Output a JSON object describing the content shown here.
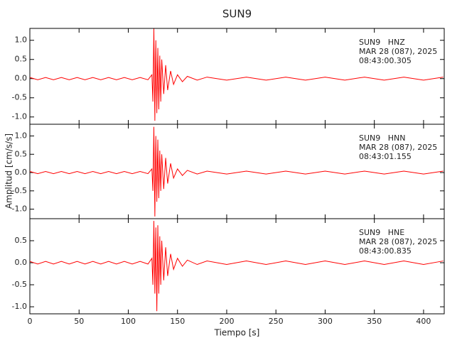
{
  "chart_data": [
    {
      "type": "line",
      "title": "SUN9",
      "labels": [
        "SUN9   HNZ",
        "MAR 28 (087), 2025",
        "08:43:00.305"
      ],
      "x": [
        0,
        8,
        16,
        24,
        32,
        40,
        48,
        56,
        64,
        72,
        80,
        88,
        96,
        104,
        112,
        120,
        124,
        125,
        126,
        127,
        128,
        129,
        130,
        131,
        132,
        133,
        134,
        136,
        138,
        140,
        143,
        146,
        150,
        155,
        160,
        170,
        180,
        200,
        220,
        240,
        260,
        280,
        300,
        320,
        340,
        360,
        380,
        400,
        420
      ],
      "series": [
        {
          "color": "#ff0000",
          "values": [
            0.03,
            -0.03,
            0.03,
            -0.03,
            0.03,
            -0.03,
            0.03,
            -0.03,
            0.03,
            -0.03,
            0.03,
            -0.03,
            0.03,
            -0.03,
            0.03,
            -0.03,
            0.1,
            -0.6,
            1.3,
            -1.1,
            1.0,
            -0.9,
            0.8,
            -0.8,
            0.6,
            -0.6,
            0.5,
            -0.4,
            0.35,
            -0.3,
            0.2,
            -0.15,
            0.1,
            -0.08,
            0.06,
            -0.04,
            0.04,
            -0.04,
            0.04,
            -0.04,
            0.04,
            -0.04,
            0.04,
            -0.04,
            0.04,
            -0.04,
            0.04,
            -0.04,
            0.04
          ]
        }
      ],
      "ylim": [
        -1.19,
        1.31
      ],
      "yticks": [
        {
          "value": -1,
          "label": "-1.0"
        },
        {
          "value": -0.5,
          "label": "-0.5"
        },
        {
          "value": 0,
          "label": "0.0"
        },
        {
          "value": 0.5,
          "label": "0.5"
        },
        {
          "value": 1,
          "label": "1.0"
        }
      ]
    },
    {
      "type": "line",
      "ylabel": "Amplitud [cm/s/s]",
      "labels": [
        "SUN9   HNN",
        "MAR 28 (087), 2025",
        "08:43:01.155"
      ],
      "x": [
        0,
        8,
        16,
        24,
        32,
        40,
        48,
        56,
        64,
        72,
        80,
        88,
        96,
        104,
        112,
        120,
        124,
        125,
        126,
        127,
        128,
        129,
        130,
        131,
        132,
        133,
        134,
        136,
        138,
        140,
        143,
        146,
        150,
        155,
        160,
        170,
        180,
        200,
        220,
        240,
        260,
        280,
        300,
        320,
        340,
        360,
        380,
        400,
        420
      ],
      "series": [
        {
          "color": "#ff0000",
          "values": [
            0.03,
            -0.03,
            0.03,
            -0.03,
            0.03,
            -0.03,
            0.03,
            -0.03,
            0.03,
            -0.03,
            0.03,
            -0.03,
            0.03,
            -0.03,
            0.03,
            -0.03,
            0.1,
            -0.5,
            1.25,
            -1.2,
            1.0,
            -0.8,
            0.9,
            -0.7,
            0.6,
            -0.5,
            0.5,
            -0.45,
            0.4,
            -0.3,
            0.25,
            -0.15,
            0.1,
            -0.08,
            0.06,
            -0.04,
            0.04,
            -0.04,
            0.04,
            -0.04,
            0.04,
            -0.04,
            0.04,
            -0.04,
            0.04,
            -0.04,
            0.04,
            -0.04,
            0.04
          ]
        }
      ],
      "ylim": [
        -1.26,
        1.32
      ],
      "yticks": [
        {
          "value": -1,
          "label": "-1.0"
        },
        {
          "value": -0.5,
          "label": "-0.5"
        },
        {
          "value": 0,
          "label": "0.0"
        },
        {
          "value": 0.5,
          "label": "0.5"
        },
        {
          "value": 1,
          "label": "1.0"
        }
      ]
    },
    {
      "type": "line",
      "xlabel": "Tiempo [s]",
      "labels": [
        "SUN9   HNE",
        "MAR 28 (087), 2025",
        "08:43:00.835"
      ],
      "x": [
        0,
        8,
        16,
        24,
        32,
        40,
        48,
        56,
        64,
        72,
        80,
        88,
        96,
        104,
        112,
        120,
        124,
        125,
        126,
        127,
        128,
        129,
        130,
        131,
        132,
        133,
        134,
        136,
        138,
        140,
        143,
        146,
        150,
        155,
        160,
        170,
        180,
        200,
        220,
        240,
        260,
        280,
        300,
        320,
        340,
        360,
        380,
        400,
        420
      ],
      "series": [
        {
          "color": "#ff0000",
          "values": [
            0.03,
            -0.03,
            0.03,
            -0.03,
            0.03,
            -0.03,
            0.03,
            -0.03,
            0.03,
            -0.03,
            0.03,
            -0.03,
            0.03,
            -0.03,
            0.03,
            -0.03,
            0.1,
            -0.5,
            0.95,
            -0.7,
            0.8,
            -1.1,
            0.85,
            -0.7,
            0.6,
            -0.5,
            0.5,
            -0.4,
            0.35,
            -0.3,
            0.2,
            -0.15,
            0.1,
            -0.08,
            0.06,
            -0.04,
            0.04,
            -0.04,
            0.04,
            -0.04,
            0.04,
            -0.04,
            0.04,
            -0.04,
            0.04,
            -0.04,
            0.04,
            -0.04,
            0.04
          ]
        }
      ],
      "ylim": [
        -1.16,
        1.0
      ],
      "yticks": [
        {
          "value": -1,
          "label": "-1.0"
        },
        {
          "value": -0.5,
          "label": "-0.5"
        },
        {
          "value": 0,
          "label": "0.0"
        },
        {
          "value": 0.5,
          "label": "0.5"
        }
      ],
      "xlim": [
        0,
        421
      ],
      "xticks": [
        0,
        50,
        100,
        150,
        200,
        250,
        300,
        350,
        400
      ]
    }
  ]
}
